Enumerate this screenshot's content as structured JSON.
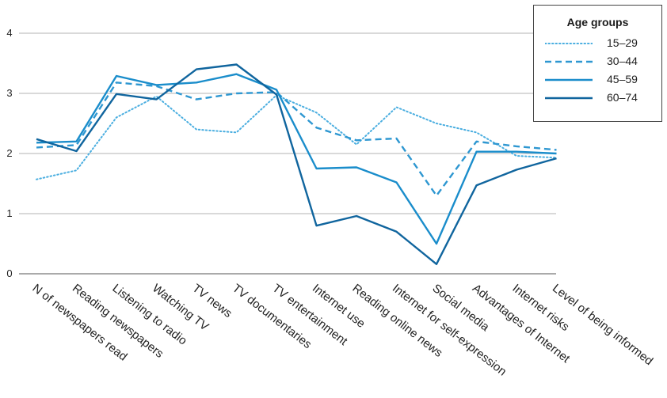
{
  "chart_data": {
    "type": "line",
    "categories": [
      "N of newspapers read",
      "Reading newspapers",
      "Listening to radio",
      "Watching TV",
      "TV news",
      "TV documentaries",
      "TV entertainment",
      "Internet use",
      "Reading online news",
      "Internet for self-expression",
      "Social media",
      "Advantages of Internet",
      "Internet risks",
      "Level of being informed"
    ],
    "yticks": [
      "0",
      "1",
      "2",
      "3",
      "4"
    ],
    "ylim": [
      0,
      4
    ],
    "grid": true,
    "legend_title": "Age groups",
    "legend_position": "top-right",
    "series": [
      {
        "name": "15–29",
        "style": "dotted",
        "color": "#4aaee0",
        "values": [
          1.57,
          1.72,
          2.6,
          2.95,
          2.4,
          2.35,
          2.97,
          2.68,
          2.15,
          2.77,
          2.5,
          2.35,
          1.96,
          1.93
        ]
      },
      {
        "name": "30–44",
        "style": "dashed",
        "color": "#2e97d1",
        "values": [
          2.1,
          2.14,
          3.18,
          3.12,
          2.9,
          3.0,
          3.02,
          2.43,
          2.22,
          2.25,
          1.3,
          2.2,
          2.12,
          2.06
        ]
      },
      {
        "name": "45–59",
        "style": "solid",
        "color": "#1a8dcb",
        "values": [
          2.18,
          2.2,
          3.29,
          3.14,
          3.18,
          3.32,
          3.06,
          1.75,
          1.77,
          1.52,
          0.5,
          2.03,
          2.03,
          2.0
        ]
      },
      {
        "name": "60–74",
        "style": "solid",
        "color": "#10659e",
        "values": [
          2.24,
          2.04,
          2.99,
          2.9,
          3.4,
          3.48,
          2.98,
          0.8,
          0.96,
          0.7,
          0.16,
          1.47,
          1.73,
          1.92
        ]
      }
    ]
  }
}
